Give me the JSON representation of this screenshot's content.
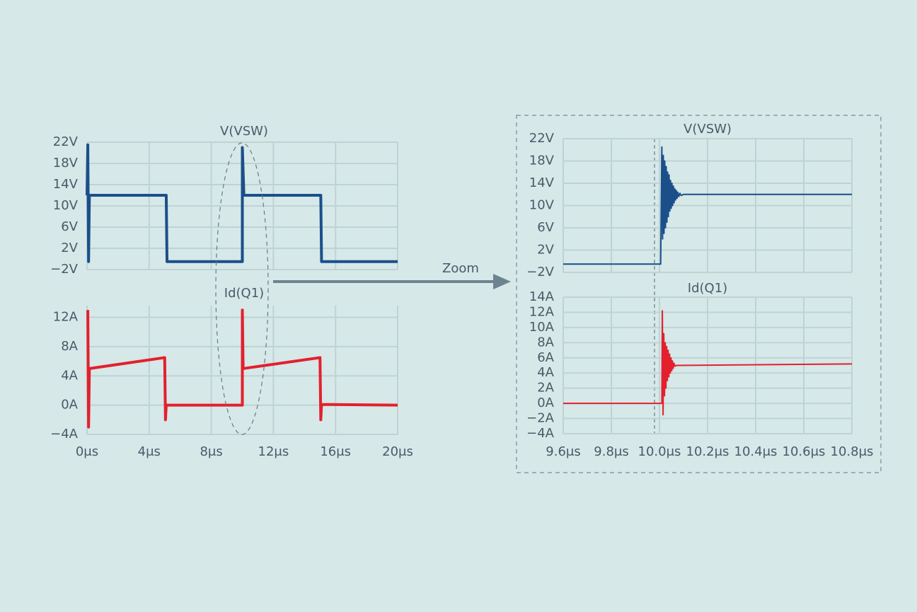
{
  "annotation": "Zoom",
  "chart_data": [
    {
      "type": "line",
      "title": "V(VSW)",
      "color": "#1a4f8a",
      "line_width": 4,
      "grid": true,
      "show_xtick_labels": false,
      "xlim": [
        0,
        20
      ],
      "xticks": [
        0,
        4,
        8,
        12,
        16,
        20
      ],
      "ylim": [
        -2,
        22
      ],
      "yticks": [
        {
          "value": -2,
          "label": "−2V"
        },
        {
          "value": 2,
          "label": "2V"
        },
        {
          "value": 6,
          "label": "6V"
        },
        {
          "value": 10,
          "label": "10V"
        },
        {
          "value": 14,
          "label": "14V"
        },
        {
          "value": 18,
          "label": "18V"
        },
        {
          "value": 22,
          "label": "22V"
        }
      ],
      "x": [
        0,
        0.05,
        0.1,
        0.15,
        5.1,
        5.15,
        10,
        10,
        10.1,
        15.05,
        15.1,
        20
      ],
      "values": [
        12,
        21.5,
        -0.5,
        12,
        12,
        -0.5,
        -0.5,
        21,
        12,
        12,
        -0.5,
        -0.5
      ]
    },
    {
      "type": "line",
      "title": "Id(Q1)",
      "color": "#e3202d",
      "line_width": 4,
      "grid": true,
      "show_xtick_labels": true,
      "xlim": [
        0,
        20
      ],
      "xticks": [
        {
          "value": 0,
          "label": "0μs"
        },
        {
          "value": 4,
          "label": "4μs"
        },
        {
          "value": 8,
          "label": "8μs"
        },
        {
          "value": 12,
          "label": "12μs"
        },
        {
          "value": 16,
          "label": "16μs"
        },
        {
          "value": 20,
          "label": "20μs"
        }
      ],
      "ylim": [
        -4,
        13.6
      ],
      "yticks": [
        {
          "value": -4,
          "label": "−4A"
        },
        {
          "value": 0,
          "label": "0A"
        },
        {
          "value": 4,
          "label": "4A"
        },
        {
          "value": 8,
          "label": "8A"
        },
        {
          "value": 12,
          "label": "12A"
        }
      ],
      "x": [
        0.05,
        0.1,
        0.15,
        5,
        5.05,
        5.1,
        10,
        10,
        10.05,
        15,
        15.05,
        15.1,
        20
      ],
      "values": [
        13,
        -3,
        5,
        6.5,
        -2,
        0,
        0,
        13,
        5,
        6.5,
        -2,
        0.1,
        0
      ]
    },
    {
      "type": "line",
      "title": "V(VSW)",
      "color": "#1a4f8a",
      "line_width": 2,
      "grid": true,
      "show_xtick_labels": false,
      "xlim": [
        9.6,
        10.8
      ],
      "xticks": [
        9.6,
        9.8,
        10,
        10.2,
        10.4,
        10.6,
        10.8
      ],
      "ylim": [
        -2,
        22
      ],
      "yticks": [
        {
          "value": -2,
          "label": "−2V"
        },
        {
          "value": 2,
          "label": "2V"
        },
        {
          "value": 6,
          "label": "6V"
        },
        {
          "value": 10,
          "label": "10V"
        },
        {
          "value": 14,
          "label": "14V"
        },
        {
          "value": 18,
          "label": "18V"
        },
        {
          "value": 22,
          "label": "22V"
        }
      ],
      "x": [
        9.6,
        10.005,
        10.01,
        10.013,
        10.016,
        10.019,
        10.022,
        10.025,
        10.028,
        10.031,
        10.034,
        10.037,
        10.04,
        10.043,
        10.046,
        10.049,
        10.052,
        10.055,
        10.058,
        10.061,
        10.064,
        10.067,
        10.07,
        10.073,
        10.076,
        10.08,
        10.085,
        10.09,
        10.1,
        10.8
      ],
      "values": [
        -0.5,
        -0.5,
        20.5,
        4,
        19,
        5,
        18,
        6,
        17,
        7,
        16,
        8,
        15.5,
        9,
        14.5,
        9.5,
        14,
        10,
        13.5,
        10.5,
        13,
        11,
        12.7,
        11.3,
        12.4,
        11.6,
        12.2,
        11.8,
        12,
        12
      ]
    },
    {
      "type": "line",
      "title": "Id(Q1)",
      "color": "#e3202d",
      "line_width": 2,
      "grid": true,
      "show_xtick_labels": true,
      "xlim": [
        9.6,
        10.8
      ],
      "xticks": [
        {
          "value": 9.6,
          "label": "9.6μs"
        },
        {
          "value": 9.8,
          "label": "9.8μs"
        },
        {
          "value": 10,
          "label": "10.0μs"
        },
        {
          "value": 10.2,
          "label": "10.2μs"
        },
        {
          "value": 10.4,
          "label": "10.4μs"
        },
        {
          "value": 10.6,
          "label": "10.6μs"
        },
        {
          "value": 10.8,
          "label": "10.8μs"
        }
      ],
      "ylim": [
        -4,
        14
      ],
      "yticks": [
        {
          "value": -4,
          "label": "−4A"
        },
        {
          "value": -2,
          "label": "−2A"
        },
        {
          "value": 0,
          "label": "0A"
        },
        {
          "value": 2,
          "label": "2A"
        },
        {
          "value": 4,
          "label": "4A"
        },
        {
          "value": 6,
          "label": "6A"
        },
        {
          "value": 8,
          "label": "8A"
        },
        {
          "value": 10,
          "label": "10A"
        },
        {
          "value": 12,
          "label": "12A"
        },
        {
          "value": 14,
          "label": "14A"
        }
      ],
      "x": [
        9.6,
        10.01,
        10.012,
        10.015,
        10.018,
        10.021,
        10.024,
        10.027,
        10.03,
        10.033,
        10.036,
        10.039,
        10.042,
        10.045,
        10.048,
        10.051,
        10.054,
        10.057,
        10.06,
        10.065,
        10.07,
        10.8
      ],
      "values": [
        0,
        0,
        12.2,
        -1.5,
        9.2,
        1,
        8,
        2,
        7.5,
        3,
        7,
        3.5,
        6.5,
        4,
        6,
        4.3,
        5.6,
        4.6,
        5.3,
        4.9,
        5,
        5.2
      ]
    }
  ]
}
